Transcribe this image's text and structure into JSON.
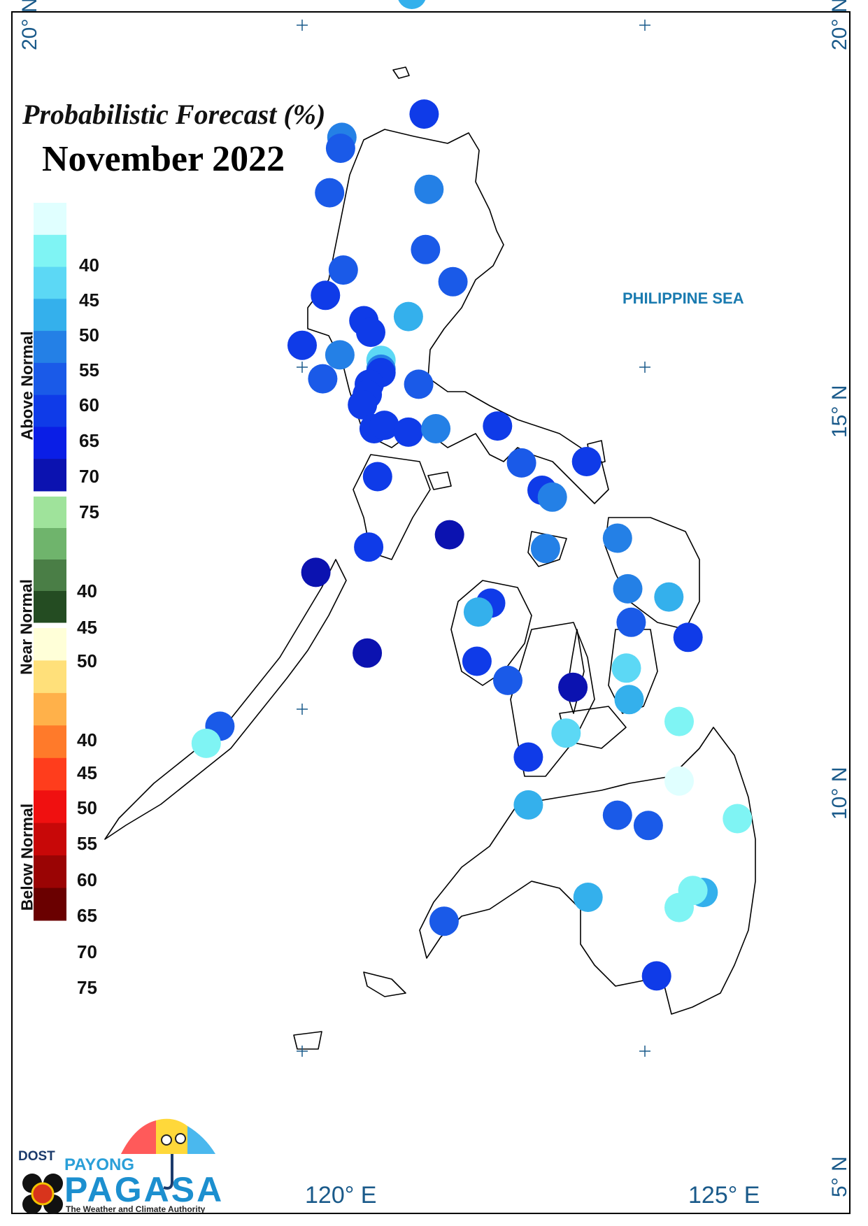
{
  "title": "Probabilistic Forecast (%)",
  "month": "November 2022",
  "sea_label": "PHILIPPINE SEA",
  "lat_labels": {
    "n20": "20° N",
    "n15": "15° N",
    "n10": "10° N",
    "n5": "5° N"
  },
  "lon_labels": {
    "e120": "120° E",
    "e125": "125° E"
  },
  "legend": {
    "above": {
      "label": "Above Normal",
      "ticks": [
        "40",
        "45",
        "50",
        "55",
        "60",
        "65",
        "70",
        "75"
      ],
      "colors": [
        "#e0ffff",
        "#7ff4f4",
        "#5cd8f5",
        "#34b0ec",
        "#2480e6",
        "#1a5ae8",
        "#0f3be8",
        "#0a1ee6",
        "#0b12b0"
      ]
    },
    "near": {
      "label": "Near Normal",
      "ticks": [
        "40",
        "45",
        "50"
      ],
      "colors": [
        "#9fe39b",
        "#6fb46c",
        "#4a7e46",
        "#244c22"
      ]
    },
    "below": {
      "label": "Below Normal",
      "ticks": [
        "40",
        "45",
        "50",
        "55",
        "60",
        "65",
        "70",
        "75"
      ],
      "colors": [
        "#ffffd8",
        "#ffe07a",
        "#ffb14a",
        "#ff7a2a",
        "#ff3d1c",
        "#f01010",
        "#c80808",
        "#9a0404",
        "#6a0000"
      ]
    }
  },
  "stations": [
    {
      "lon": 121.6,
      "lat": 20.45,
      "color": "#34b0ec"
    },
    {
      "lon": 121.78,
      "lat": 18.7,
      "color": "#0f3be8"
    },
    {
      "lon": 120.58,
      "lat": 18.36,
      "color": "#2480e6"
    },
    {
      "lon": 120.56,
      "lat": 18.2,
      "color": "#1a5ae8"
    },
    {
      "lon": 120.4,
      "lat": 17.55,
      "color": "#1a5ae8"
    },
    {
      "lon": 121.85,
      "lat": 17.6,
      "color": "#2480e6"
    },
    {
      "lon": 121.8,
      "lat": 16.72,
      "color": "#1a5ae8"
    },
    {
      "lon": 120.6,
      "lat": 16.42,
      "color": "#1a5ae8"
    },
    {
      "lon": 122.2,
      "lat": 16.25,
      "color": "#1a5ae8"
    },
    {
      "lon": 120.34,
      "lat": 16.05,
      "color": "#0f3be8"
    },
    {
      "lon": 120.9,
      "lat": 15.68,
      "color": "#0f3be8"
    },
    {
      "lon": 121.55,
      "lat": 15.74,
      "color": "#34b0ec"
    },
    {
      "lon": 121.0,
      "lat": 15.51,
      "color": "#0f3be8"
    },
    {
      "lon": 120.0,
      "lat": 15.32,
      "color": "#0f3be8"
    },
    {
      "lon": 120.55,
      "lat": 15.18,
      "color": "#2480e6"
    },
    {
      "lon": 121.15,
      "lat": 15.1,
      "color": "#5cd8f5"
    },
    {
      "lon": 121.15,
      "lat": 14.97,
      "color": "#2480e6"
    },
    {
      "lon": 121.15,
      "lat": 14.92,
      "color": "#0f3be8"
    },
    {
      "lon": 120.3,
      "lat": 14.83,
      "color": "#1a5ae8"
    },
    {
      "lon": 120.98,
      "lat": 14.75,
      "color": "#0f3be8"
    },
    {
      "lon": 121.7,
      "lat": 14.75,
      "color": "#1a5ae8"
    },
    {
      "lon": 120.95,
      "lat": 14.6,
      "color": "#0f3be8"
    },
    {
      "lon": 120.88,
      "lat": 14.45,
      "color": "#0f3be8"
    },
    {
      "lon": 121.05,
      "lat": 14.1,
      "color": "#0f3be8"
    },
    {
      "lon": 121.2,
      "lat": 14.15,
      "color": "#0f3be8"
    },
    {
      "lon": 121.55,
      "lat": 14.05,
      "color": "#0f3be8"
    },
    {
      "lon": 121.95,
      "lat": 14.1,
      "color": "#2480e6"
    },
    {
      "lon": 122.85,
      "lat": 14.14,
      "color": "#0f3be8"
    },
    {
      "lon": 123.2,
      "lat": 13.6,
      "color": "#1a5ae8"
    },
    {
      "lon": 124.15,
      "lat": 13.62,
      "color": "#0f3be8"
    },
    {
      "lon": 121.1,
      "lat": 13.4,
      "color": "#0f3be8"
    },
    {
      "lon": 123.5,
      "lat": 13.2,
      "color": "#0f3be8"
    },
    {
      "lon": 123.65,
      "lat": 13.1,
      "color": "#2480e6"
    },
    {
      "lon": 122.15,
      "lat": 12.55,
      "color": "#0b12b0"
    },
    {
      "lon": 120.97,
      "lat": 12.37,
      "color": "#0f3be8"
    },
    {
      "lon": 124.6,
      "lat": 12.5,
      "color": "#2480e6"
    },
    {
      "lon": 123.55,
      "lat": 12.35,
      "color": "#2480e6"
    },
    {
      "lon": 120.2,
      "lat": 12.0,
      "color": "#0b12b0"
    },
    {
      "lon": 124.75,
      "lat": 11.76,
      "color": "#2480e6"
    },
    {
      "lon": 125.35,
      "lat": 11.64,
      "color": "#34b0ec"
    },
    {
      "lon": 122.75,
      "lat": 11.55,
      "color": "#0f3be8"
    },
    {
      "lon": 122.57,
      "lat": 11.42,
      "color": "#34b0ec"
    },
    {
      "lon": 124.8,
      "lat": 11.27,
      "color": "#1a5ae8"
    },
    {
      "lon": 125.63,
      "lat": 11.05,
      "color": "#0f3be8"
    },
    {
      "lon": 120.95,
      "lat": 10.82,
      "color": "#0b12b0"
    },
    {
      "lon": 122.55,
      "lat": 10.7,
      "color": "#0f3be8"
    },
    {
      "lon": 124.73,
      "lat": 10.6,
      "color": "#5cd8f5"
    },
    {
      "lon": 123.0,
      "lat": 10.42,
      "color": "#1a5ae8"
    },
    {
      "lon": 123.95,
      "lat": 10.32,
      "color": "#0b12b0"
    },
    {
      "lon": 124.77,
      "lat": 10.14,
      "color": "#34b0ec"
    },
    {
      "lon": 118.8,
      "lat": 9.75,
      "color": "#1a5ae8"
    },
    {
      "lon": 125.5,
      "lat": 9.82,
      "color": "#7ff4f4"
    },
    {
      "lon": 123.85,
      "lat": 9.65,
      "color": "#5cd8f5"
    },
    {
      "lon": 118.6,
      "lat": 9.5,
      "color": "#7ff4f4"
    },
    {
      "lon": 123.3,
      "lat": 9.3,
      "color": "#0f3be8"
    },
    {
      "lon": 125.5,
      "lat": 8.95,
      "color": "#e0ffff"
    },
    {
      "lon": 123.3,
      "lat": 8.6,
      "color": "#34b0ec"
    },
    {
      "lon": 124.6,
      "lat": 8.45,
      "color": "#1a5ae8"
    },
    {
      "lon": 126.35,
      "lat": 8.4,
      "color": "#7ff4f4"
    },
    {
      "lon": 125.05,
      "lat": 8.3,
      "color": "#1a5ae8"
    },
    {
      "lon": 124.17,
      "lat": 7.25,
      "color": "#34b0ec"
    },
    {
      "lon": 125.85,
      "lat": 7.32,
      "color": "#34b0ec"
    },
    {
      "lon": 125.7,
      "lat": 7.35,
      "color": "#7ff4f4"
    },
    {
      "lon": 125.5,
      "lat": 7.1,
      "color": "#7ff4f4"
    },
    {
      "lon": 122.07,
      "lat": 6.9,
      "color": "#1a5ae8"
    },
    {
      "lon": 125.17,
      "lat": 6.1,
      "color": "#0f3be8"
    }
  ]
}
